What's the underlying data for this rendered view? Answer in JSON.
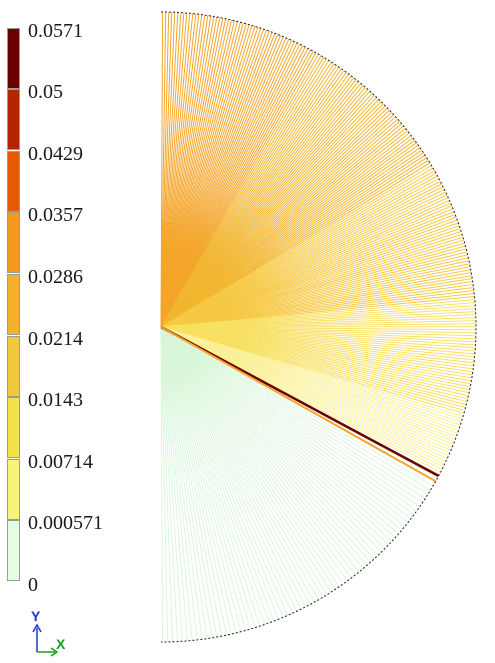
{
  "legend": {
    "ticks": [
      "0.0571",
      "0.05",
      "0.0429",
      "0.0357",
      "0.0286",
      "0.0214",
      "0.0143",
      "0.00714",
      "0.000571",
      "0"
    ],
    "colors": [
      "#6b0000",
      "#b52400",
      "#e65a00",
      "#f49a1e",
      "#f5b129",
      "#f2c93c",
      "#f5e24a",
      "#f8f47a",
      "#e2fde2"
    ]
  },
  "axes": {
    "y_label": "Y",
    "x_label": "X",
    "y_color": "#1a32d6",
    "x_color": "#18a018"
  },
  "plot": {
    "outline_color": "#222222",
    "highlight_color": "#6b0000",
    "upper_colors": [
      "#f4a52a",
      "#f2b630",
      "#f6c945",
      "#f8e062",
      "#fbf098"
    ],
    "lower_color": "#d8f6d8"
  }
}
